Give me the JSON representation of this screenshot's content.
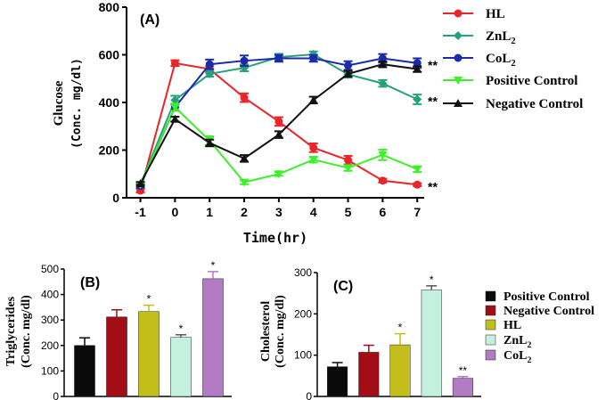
{
  "chart_data": [
    {
      "type": "line",
      "panel_label": "(A)",
      "xlabel": "Time(hr)",
      "ylabel_line1": "Glucose",
      "ylabel_line2": "(Conc. mg/dl)",
      "x": [
        -1,
        0,
        1,
        2,
        3,
        4,
        5,
        6,
        7
      ],
      "xticks": [
        "-1",
        "0",
        "1",
        "2",
        "3",
        "4",
        "5",
        "6",
        "7"
      ],
      "yticks": [
        "0",
        "200",
        "400",
        "600",
        "800"
      ],
      "ylim": [
        0,
        800
      ],
      "xlim": [
        -1.4,
        7.2
      ],
      "legend_position": "right",
      "series": [
        {
          "name": "HL",
          "sub": "",
          "color": "#e8262a",
          "marker": "circle",
          "values": [
            30,
            565,
            540,
            420,
            320,
            210,
            158,
            72,
            55
          ],
          "errors": [
            8,
            12,
            12,
            18,
            18,
            18,
            18,
            8,
            6
          ]
        },
        {
          "name": "ZnL",
          "sub": "2",
          "color": "#27a07c",
          "marker": "diamond",
          "values": [
            55,
            410,
            520,
            545,
            590,
            602,
            518,
            480,
            413
          ],
          "errors": [
            8,
            18,
            12,
            14,
            14,
            12,
            14,
            14,
            20
          ]
        },
        {
          "name": "CoL",
          "sub": "2",
          "color": "#1a2aa8",
          "marker": "circle",
          "values": [
            50,
            380,
            560,
            575,
            585,
            585,
            555,
            585,
            565
          ],
          "errors": [
            8,
            14,
            20,
            22,
            14,
            14,
            18,
            18,
            20
          ]
        },
        {
          "name": "Positive Control",
          "sub": "",
          "color": "#3df02a",
          "marker": "triangle-down",
          "values": [
            55,
            380,
            240,
            65,
            100,
            160,
            125,
            180,
            120
          ],
          "errors": [
            6,
            15,
            18,
            8,
            8,
            12,
            12,
            22,
            12
          ]
        },
        {
          "name": "Negative Control",
          "sub": "",
          "color": "#111111",
          "marker": "triangle-up",
          "values": [
            60,
            330,
            230,
            165,
            265,
            410,
            520,
            560,
            540
          ],
          "errors": [
            6,
            10,
            14,
            14,
            14,
            14,
            12,
            12,
            12
          ]
        }
      ],
      "annotations": [
        {
          "series": "CoL2",
          "text": "**"
        },
        {
          "series": "ZnL2",
          "text": "**"
        },
        {
          "series": "HL",
          "text": "**"
        }
      ]
    },
    {
      "type": "bar",
      "panel_label": "(B)",
      "ylabel_line1": "Triglycerides",
      "ylabel_line2": "(Conc. mg/dl)",
      "yticks": [
        "0",
        "100",
        "200",
        "300",
        "400",
        "500"
      ],
      "ylim": [
        0,
        500
      ],
      "categories": [
        "Positive Control",
        "Negative Control",
        "HL",
        "ZnL2",
        "CoL2"
      ],
      "colors": [
        "#0a0a0a",
        "#a30d16",
        "#c3be1a",
        "#c4f0df",
        "#b27bc4"
      ],
      "values": [
        200,
        312,
        333,
        232,
        462
      ],
      "errors": [
        30,
        28,
        25,
        10,
        28
      ],
      "significance": [
        "",
        "",
        "*",
        "*",
        "*"
      ]
    },
    {
      "type": "bar",
      "panel_label": "(C)",
      "ylabel_line1": "Cholesterol",
      "ylabel_line2": "(Conc. mg/dl)",
      "yticks": [
        "0",
        "100",
        "200",
        "300"
      ],
      "ylim": [
        0,
        300
      ],
      "categories": [
        "Positive Control",
        "Negative Control",
        "HL",
        "ZnL2",
        "CoL2"
      ],
      "colors": [
        "#0a0a0a",
        "#a30d16",
        "#c3be1a",
        "#c4f0df",
        "#b27bc4"
      ],
      "values": [
        72,
        107,
        125,
        258,
        44
      ],
      "errors": [
        10,
        17,
        27,
        10,
        4
      ],
      "significance": [
        "",
        "",
        "*",
        "*",
        "**"
      ],
      "legend": [
        {
          "name": "Positive Control",
          "sub": "",
          "color": "#0a0a0a"
        },
        {
          "name": "Negative Control",
          "sub": "",
          "color": "#a30d16"
        },
        {
          "name": "HL",
          "sub": "",
          "color": "#c3be1a"
        },
        {
          "name": "ZnL",
          "sub": "2",
          "color": "#c4f0df"
        },
        {
          "name": "CoL",
          "sub": "2",
          "color": "#b27bc4"
        }
      ]
    }
  ]
}
